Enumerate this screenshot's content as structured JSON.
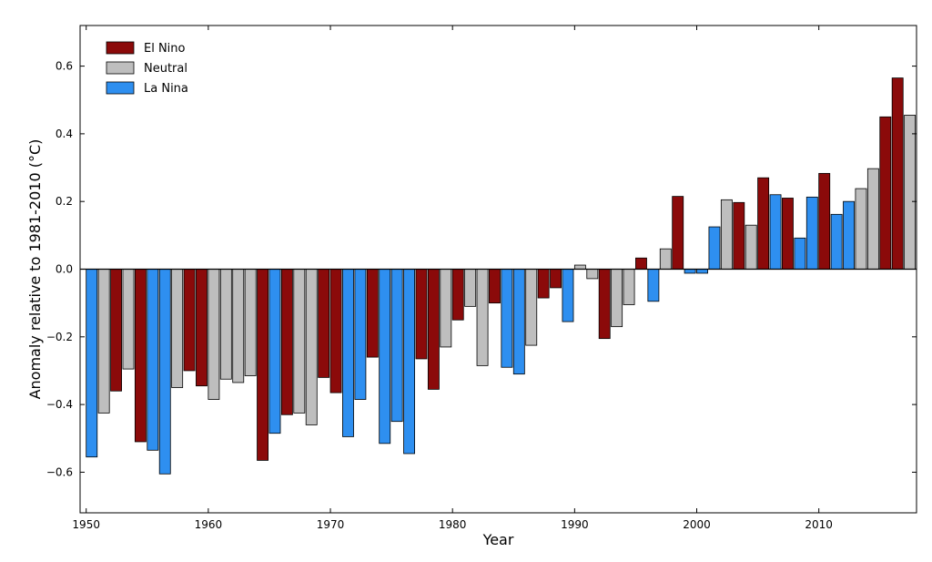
{
  "chart_data": {
    "type": "bar",
    "xlabel": "Year",
    "ylabel": "Anomaly relative to 1981-2010 (°C)",
    "ylim": [
      -0.72,
      0.72
    ],
    "xlim": [
      1949.5,
      2018
    ],
    "x_ticks": [
      1950,
      1960,
      1970,
      1980,
      1990,
      2000,
      2010
    ],
    "y_ticks": [
      -0.6,
      -0.4,
      -0.2,
      0.0,
      0.2,
      0.4,
      0.6
    ],
    "y_tick_labels": [
      "−0.6",
      "−0.4",
      "−0.2",
      "0.0",
      "0.2",
      "0.4",
      "0.6"
    ],
    "legend_position": "top-left",
    "grid": false,
    "colors": {
      "El Nino": "#8b0a0a",
      "Neutral": "#bebebe",
      "La Nina": "#2e8ff0"
    },
    "legend": [
      "El Nino",
      "Neutral",
      "La Nina"
    ],
    "bars": [
      {
        "year": 1950,
        "value": -0.555,
        "phase": "La Nina"
      },
      {
        "year": 1951,
        "value": -0.425,
        "phase": "Neutral"
      },
      {
        "year": 1952,
        "value": -0.36,
        "phase": "El Nino"
      },
      {
        "year": 1953,
        "value": -0.295,
        "phase": "Neutral"
      },
      {
        "year": 1954,
        "value": -0.51,
        "phase": "El Nino"
      },
      {
        "year": 1955,
        "value": -0.535,
        "phase": "La Nina"
      },
      {
        "year": 1956,
        "value": -0.605,
        "phase": "La Nina"
      },
      {
        "year": 1957,
        "value": -0.35,
        "phase": "Neutral"
      },
      {
        "year": 1958,
        "value": -0.3,
        "phase": "El Nino"
      },
      {
        "year": 1959,
        "value": -0.345,
        "phase": "El Nino"
      },
      {
        "year": 1960,
        "value": -0.385,
        "phase": "Neutral"
      },
      {
        "year": 1961,
        "value": -0.325,
        "phase": "Neutral"
      },
      {
        "year": 1962,
        "value": -0.335,
        "phase": "Neutral"
      },
      {
        "year": 1963,
        "value": -0.315,
        "phase": "Neutral"
      },
      {
        "year": 1964,
        "value": -0.565,
        "phase": "El Nino"
      },
      {
        "year": 1965,
        "value": -0.485,
        "phase": "La Nina"
      },
      {
        "year": 1966,
        "value": -0.43,
        "phase": "El Nino"
      },
      {
        "year": 1967,
        "value": -0.425,
        "phase": "Neutral"
      },
      {
        "year": 1968,
        "value": -0.46,
        "phase": "Neutral"
      },
      {
        "year": 1969,
        "value": -0.32,
        "phase": "El Nino"
      },
      {
        "year": 1970,
        "value": -0.365,
        "phase": "El Nino"
      },
      {
        "year": 1971,
        "value": -0.495,
        "phase": "La Nina"
      },
      {
        "year": 1972,
        "value": -0.385,
        "phase": "La Nina"
      },
      {
        "year": 1973,
        "value": -0.26,
        "phase": "El Nino"
      },
      {
        "year": 1974,
        "value": -0.515,
        "phase": "La Nina"
      },
      {
        "year": 1975,
        "value": -0.45,
        "phase": "La Nina"
      },
      {
        "year": 1976,
        "value": -0.545,
        "phase": "La Nina"
      },
      {
        "year": 1977,
        "value": -0.265,
        "phase": "El Nino"
      },
      {
        "year": 1978,
        "value": -0.355,
        "phase": "El Nino"
      },
      {
        "year": 1979,
        "value": -0.23,
        "phase": "Neutral"
      },
      {
        "year": 1980,
        "value": -0.15,
        "phase": "El Nino"
      },
      {
        "year": 1981,
        "value": -0.11,
        "phase": "Neutral"
      },
      {
        "year": 1982,
        "value": -0.285,
        "phase": "Neutral"
      },
      {
        "year": 1983,
        "value": -0.1,
        "phase": "El Nino"
      },
      {
        "year": 1984,
        "value": -0.29,
        "phase": "La Nina"
      },
      {
        "year": 1985,
        "value": -0.31,
        "phase": "La Nina"
      },
      {
        "year": 1986,
        "value": -0.225,
        "phase": "Neutral"
      },
      {
        "year": 1987,
        "value": -0.085,
        "phase": "El Nino"
      },
      {
        "year": 1988,
        "value": -0.055,
        "phase": "El Nino"
      },
      {
        "year": 1989,
        "value": -0.155,
        "phase": "La Nina"
      },
      {
        "year": 1990,
        "value": 0.012,
        "phase": "Neutral"
      },
      {
        "year": 1991,
        "value": -0.028,
        "phase": "Neutral"
      },
      {
        "year": 1992,
        "value": -0.205,
        "phase": "El Nino"
      },
      {
        "year": 1993,
        "value": -0.17,
        "phase": "Neutral"
      },
      {
        "year": 1994,
        "value": -0.105,
        "phase": "Neutral"
      },
      {
        "year": 1995,
        "value": 0.033,
        "phase": "El Nino"
      },
      {
        "year": 1996,
        "value": -0.095,
        "phase": "La Nina"
      },
      {
        "year": 1997,
        "value": 0.06,
        "phase": "Neutral"
      },
      {
        "year": 1998,
        "value": 0.215,
        "phase": "El Nino"
      },
      {
        "year": 1999,
        "value": -0.012,
        "phase": "La Nina"
      },
      {
        "year": 2000,
        "value": -0.012,
        "phase": "La Nina"
      },
      {
        "year": 2001,
        "value": 0.125,
        "phase": "La Nina"
      },
      {
        "year": 2002,
        "value": 0.205,
        "phase": "Neutral"
      },
      {
        "year": 2003,
        "value": 0.197,
        "phase": "El Nino"
      },
      {
        "year": 2004,
        "value": 0.13,
        "phase": "Neutral"
      },
      {
        "year": 2005,
        "value": 0.27,
        "phase": "El Nino"
      },
      {
        "year": 2006,
        "value": 0.22,
        "phase": "La Nina"
      },
      {
        "year": 2007,
        "value": 0.21,
        "phase": "El Nino"
      },
      {
        "year": 2008,
        "value": 0.092,
        "phase": "La Nina"
      },
      {
        "year": 2009,
        "value": 0.213,
        "phase": "La Nina"
      },
      {
        "year": 2010,
        "value": 0.283,
        "phase": "El Nino"
      },
      {
        "year": 2011,
        "value": 0.162,
        "phase": "La Nina"
      },
      {
        "year": 2012,
        "value": 0.2,
        "phase": "La Nina"
      },
      {
        "year": 2013,
        "value": 0.238,
        "phase": "Neutral"
      },
      {
        "year": 2014,
        "value": 0.297,
        "phase": "Neutral"
      },
      {
        "year": 2015,
        "value": 0.45,
        "phase": "El Nino"
      },
      {
        "year": 2016,
        "value": 0.565,
        "phase": "El Nino"
      },
      {
        "year": 2017,
        "value": 0.455,
        "phase": "Neutral"
      }
    ]
  }
}
